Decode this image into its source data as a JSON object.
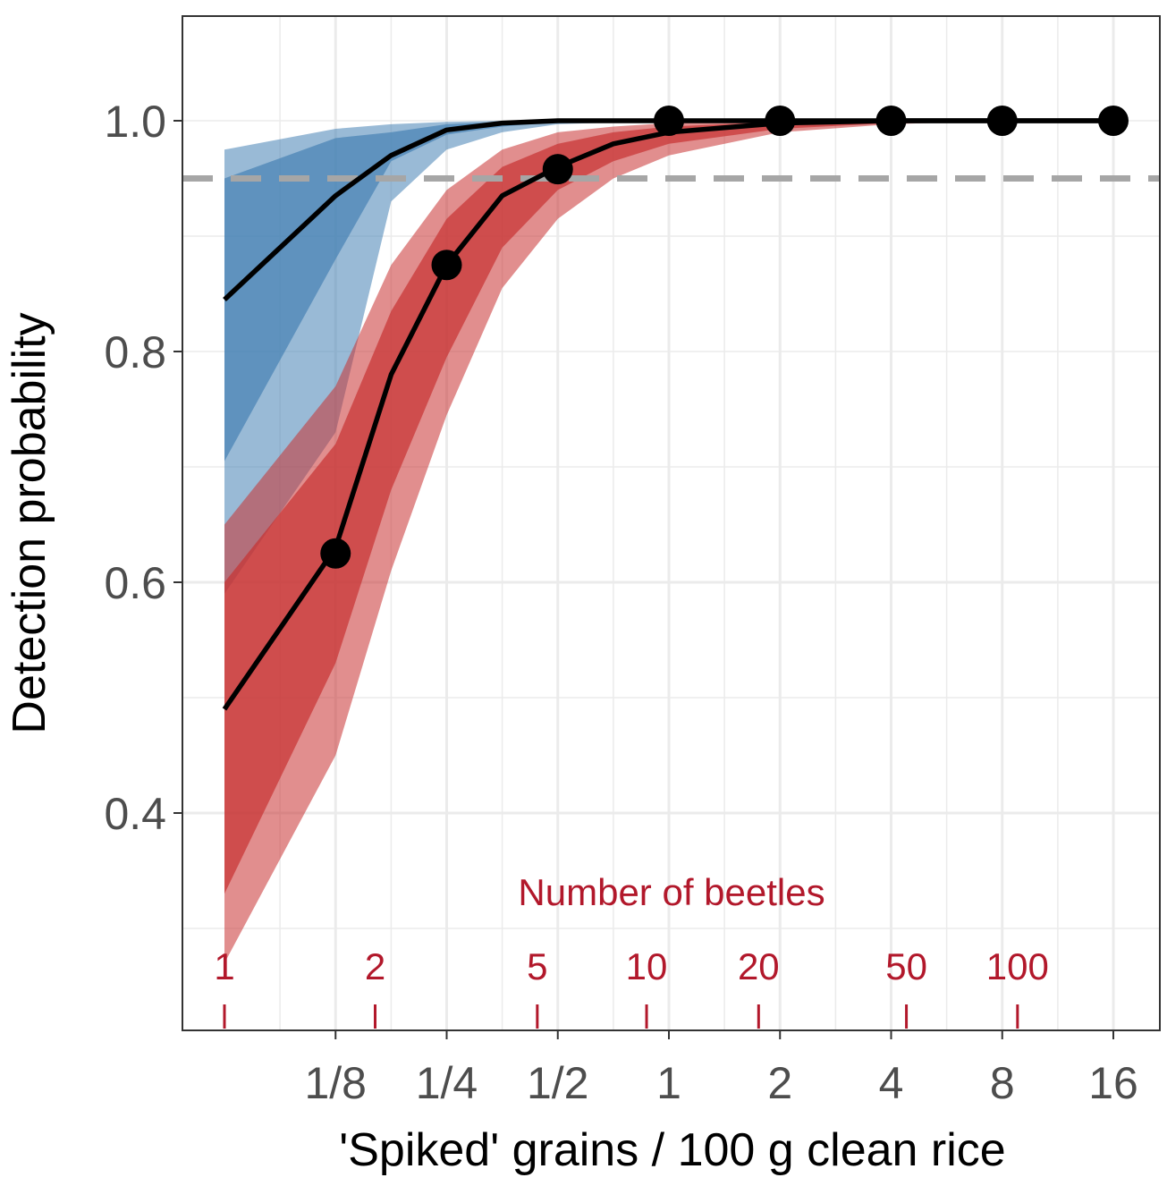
{
  "chart_data": {
    "type": "line",
    "xlabel": "'Spiked' grains / 100 g clean rice",
    "ylabel": "Detection probability",
    "x_scale": "log2",
    "xlim": [
      0.0625,
      22
    ],
    "ylim": [
      0.23,
      1.09
    ],
    "x_ticks": [
      {
        "value": 0.125,
        "label": "1/8"
      },
      {
        "value": 0.25,
        "label": "1/4"
      },
      {
        "value": 0.5,
        "label": "1/2"
      },
      {
        "value": 1,
        "label": "1"
      },
      {
        "value": 2,
        "label": "2"
      },
      {
        "value": 4,
        "label": "4"
      },
      {
        "value": 8,
        "label": "8"
      },
      {
        "value": 16,
        "label": "16"
      }
    ],
    "y_ticks": [
      {
        "value": 0.4,
        "label": "0.4"
      },
      {
        "value": 0.6,
        "label": "0.6"
      },
      {
        "value": 0.8,
        "label": "0.8"
      },
      {
        "value": 1.0,
        "label": "1.0"
      }
    ],
    "grid": true,
    "reference_line": {
      "y": 0.95,
      "style": "dashed",
      "color": "#a6a6a6"
    },
    "secondary_axis": {
      "title": "Number of beetles",
      "color": "#b2182b",
      "ticks": [
        {
          "value": 0.0625,
          "label": "1"
        },
        {
          "value": 0.16,
          "label": "2"
        },
        {
          "value": 0.44,
          "label": "5"
        },
        {
          "value": 0.87,
          "label": "10"
        },
        {
          "value": 1.75,
          "label": "20"
        },
        {
          "value": 4.4,
          "label": "50"
        },
        {
          "value": 8.8,
          "label": "100"
        }
      ]
    },
    "series": [
      {
        "color": "#4682b4",
        "x": [
          0.0625,
          0.125,
          0.1768,
          0.25,
          0.3536,
          0.5,
          1,
          2,
          4,
          8,
          16
        ],
        "y": [
          0.845,
          0.935,
          0.97,
          0.992,
          0.998,
          1.0,
          1.0,
          1.0,
          1.0,
          1.0,
          1.0
        ],
        "inner_band": {
          "lower": [
            0.705,
            0.88,
            0.965,
            0.988,
            0.995,
            0.999,
            1.0,
            1.0,
            1.0,
            1.0,
            1.0
          ],
          "upper": [
            0.95,
            0.985,
            0.99,
            0.997,
            0.999,
            1.0,
            1.0,
            1.0,
            1.0,
            1.0,
            1.0
          ]
        },
        "outer_band": {
          "lower": [
            0.59,
            0.73,
            0.93,
            0.975,
            0.99,
            0.997,
            1.0,
            1.0,
            1.0,
            1.0,
            1.0
          ],
          "upper": [
            0.975,
            0.993,
            0.997,
            0.999,
            1.0,
            1.0,
            1.0,
            1.0,
            1.0,
            1.0,
            1.0
          ]
        }
      },
      {
        "color": "#c83232",
        "x": [
          0.0625,
          0.125,
          0.1768,
          0.25,
          0.3536,
          0.5,
          0.7071,
          1,
          2,
          4,
          8,
          16
        ],
        "y": [
          0.49,
          0.63,
          0.78,
          0.875,
          0.935,
          0.96,
          0.98,
          0.99,
          0.998,
          1.0,
          1.0,
          1.0
        ],
        "inner_band": {
          "lower": [
            0.33,
            0.53,
            0.68,
            0.795,
            0.89,
            0.94,
            0.965,
            0.98,
            0.993,
            0.998,
            1.0,
            1.0
          ],
          "upper": [
            0.6,
            0.72,
            0.835,
            0.915,
            0.96,
            0.98,
            0.99,
            0.995,
            0.999,
            1.0,
            1.0,
            1.0
          ]
        },
        "outer_band": {
          "lower": [
            0.27,
            0.45,
            0.61,
            0.745,
            0.855,
            0.915,
            0.95,
            0.97,
            0.99,
            0.997,
            1.0,
            1.0
          ],
          "upper": [
            0.65,
            0.77,
            0.875,
            0.94,
            0.975,
            0.99,
            0.995,
            0.998,
            1.0,
            1.0,
            1.0,
            1.0
          ]
        }
      }
    ],
    "observed_points": {
      "x": [
        0.125,
        0.25,
        0.5,
        1,
        2,
        4,
        8,
        16
      ],
      "y": [
        0.625,
        0.875,
        0.958,
        1.0,
        1.0,
        1.0,
        1.0,
        1.0
      ]
    }
  }
}
